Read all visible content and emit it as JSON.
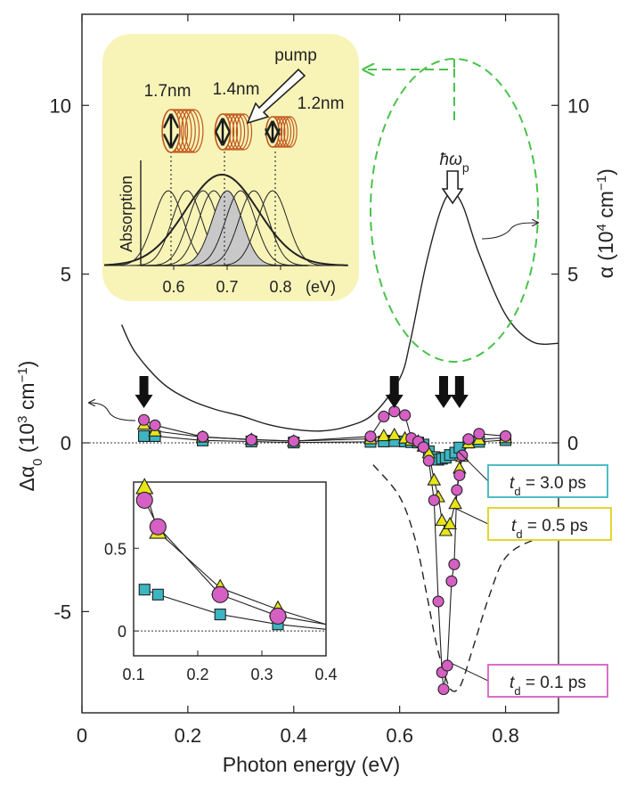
{
  "chart_data": {
    "type": "scatter",
    "xlabel": "Photon energy (eV)",
    "ylabel_left": "Δα",
    "ylabel_left_sub": "0",
    "ylabel_left_unit": "(10",
    "ylabel_left_unit_exp": "3",
    "ylabel_left_unit_tail": " cm",
    "ylabel_left_unit_exp2": "−1",
    "ylabel_left_unit_close": ")",
    "ylabel_right": "α (10",
    "ylabel_right_exp": "4",
    "ylabel_right_tail": " cm",
    "ylabel_right_exp2": "−1",
    "ylabel_right_close": ")",
    "xlim": [
      0,
      0.9
    ],
    "ylim_left": [
      -8.0,
      12.7
    ],
    "ylim_right": [
      -8.0,
      12.7
    ],
    "x_ticks": [
      0,
      0.2,
      0.4,
      0.6,
      0.8
    ],
    "x_tick_labels": [
      "0",
      "0.2",
      "0.4",
      "0.6",
      "0.8"
    ],
    "y_ticks_left": [
      -5,
      0,
      5,
      10
    ],
    "y_tick_labels_left": [
      "-5",
      "0",
      "5",
      "10"
    ],
    "y_ticks_right": [
      0,
      5,
      10
    ],
    "y_tick_labels_right": [
      "0",
      "5",
      "10"
    ],
    "series": [
      {
        "name": "t_d = 0.1 ps",
        "marker": "circle",
        "color": "#d65fc4",
        "x": [
          0.117,
          0.138,
          0.228,
          0.32,
          0.4,
          0.545,
          0.57,
          0.59,
          0.61,
          0.622,
          0.635,
          0.645,
          0.655,
          0.665,
          0.673,
          0.68,
          0.683,
          0.69,
          0.698,
          0.703,
          0.708,
          0.713,
          0.718,
          0.73,
          0.75,
          0.8
        ],
        "y": [
          0.68,
          0.52,
          0.18,
          0.09,
          0.05,
          0.19,
          0.78,
          0.93,
          0.82,
          0.14,
          0.04,
          -0.13,
          -0.53,
          -1.7,
          -4.7,
          -6.8,
          -7.3,
          -6.6,
          -4.1,
          -3.6,
          -1.4,
          -0.96,
          -0.37,
          0.11,
          0.27,
          0.2
        ]
      },
      {
        "name": "t_d = 0.5 ps",
        "marker": "triangle",
        "color": "#e6e619",
        "x": [
          0.117,
          0.138,
          0.228,
          0.32,
          0.4,
          0.545,
          0.57,
          0.59,
          0.61,
          0.622,
          0.635,
          0.645,
          0.655,
          0.665,
          0.673,
          0.68,
          0.687,
          0.695,
          0.705,
          0.713,
          0.718,
          0.73,
          0.75,
          0.8
        ],
        "y": [
          0.55,
          0.35,
          0.17,
          0.1,
          0.05,
          0.12,
          0.21,
          0.24,
          0.14,
          0.08,
          0.05,
          -0.1,
          -0.3,
          -1.1,
          -1.6,
          -2.3,
          -2.6,
          -2.4,
          -1.8,
          -0.75,
          -0.4,
          0.0,
          0.1,
          0.15
        ]
      },
      {
        "name": "t_d = 3.0 ps",
        "marker": "square",
        "color": "#3bb6c2",
        "x": [
          0.117,
          0.138,
          0.228,
          0.32,
          0.4,
          0.545,
          0.57,
          0.59,
          0.61,
          0.622,
          0.635,
          0.645,
          0.655,
          0.665,
          0.673,
          0.68,
          0.687,
          0.695,
          0.705,
          0.713,
          0.73,
          0.75,
          0.8
        ],
        "y": [
          0.2,
          0.2,
          0.07,
          0.04,
          0.01,
          0.03,
          0.04,
          0.05,
          0.04,
          0.02,
          0.01,
          -0.05,
          -0.25,
          -0.42,
          -0.5,
          -0.47,
          -0.44,
          -0.36,
          -0.29,
          -0.14,
          0.01,
          0.03,
          0.08
        ]
      }
    ],
    "absorption_curve_right_axis": {
      "x": [
        0.075,
        0.1,
        0.15,
        0.2,
        0.25,
        0.3,
        0.35,
        0.4,
        0.45,
        0.5,
        0.55,
        0.6,
        0.62,
        0.65,
        0.68,
        0.7,
        0.72,
        0.75,
        0.8,
        0.85,
        0.9
      ],
      "y": [
        3.5,
        2.7,
        1.8,
        1.3,
        1.0,
        0.8,
        0.55,
        0.4,
        0.35,
        0.48,
        0.85,
        1.9,
        3.0,
        5.3,
        7.0,
        7.4,
        7.0,
        5.6,
        3.8,
        3.0,
        2.95
      ]
    },
    "dashed_curve": {
      "x": [
        0.55,
        0.6,
        0.63,
        0.65,
        0.67,
        0.69,
        0.7,
        0.71,
        0.72,
        0.74,
        0.77,
        0.8,
        0.85,
        0.9
      ],
      "y": [
        -0.65,
        -1.6,
        -2.9,
        -4.4,
        -6.0,
        -7.1,
        -7.35,
        -7.3,
        -7.0,
        -6.0,
        -4.5,
        -3.4,
        -2.9,
        -2.8
      ]
    },
    "arrows_x": [
      0.117,
      0.59,
      0.683,
      0.713
    ],
    "annotations": {
      "label_t_01": {
        "prefix": "t",
        "sub": "d",
        "rest": " = 0.1 ps"
      },
      "label_t_05": {
        "prefix": "t",
        "sub": "d",
        "rest": " = 0.5 ps"
      },
      "label_t_30": {
        "prefix": "t",
        "sub": "d",
        "rest": " = 3.0 ps"
      },
      "hbar_omega": "ħω",
      "hbar_omega_sub": "p"
    },
    "inset_top": {
      "labels_nm": [
        "1.7nm",
        "1.4nm",
        "1.2nm"
      ],
      "pump": "pump",
      "ylabel": "Absorption",
      "x_tick_labels": [
        "0.6",
        "0.7",
        "0.8"
      ],
      "x_unit": "(eV)",
      "background": "#f8f4b8"
    },
    "inset_bottom": {
      "xlim": [
        0.1,
        0.4
      ],
      "ylim": [
        -0.15,
        0.9
      ],
      "x_ticks": [
        0.1,
        0.2,
        0.3,
        0.4
      ],
      "x_tick_labels": [
        "0.1",
        "0.2",
        "0.3",
        "0.4"
      ],
      "y_ticks": [
        0,
        0.5
      ],
      "y_tick_labels": [
        "0",
        "0.5"
      ],
      "circle": {
        "x": [
          0.117,
          0.138,
          0.235,
          0.325,
          0.4
        ],
        "y": [
          0.79,
          0.63,
          0.22,
          0.09,
          0.04
        ]
      },
      "triangle": {
        "x": [
          0.117,
          0.138,
          0.235,
          0.325,
          0.4
        ],
        "y": [
          0.87,
          0.6,
          0.26,
          0.13,
          0.04
        ]
      },
      "square": {
        "x": [
          0.117,
          0.138,
          0.235,
          0.325,
          0.4
        ],
        "y": [
          0.25,
          0.22,
          0.1,
          0.04,
          0.01
        ]
      }
    }
  }
}
